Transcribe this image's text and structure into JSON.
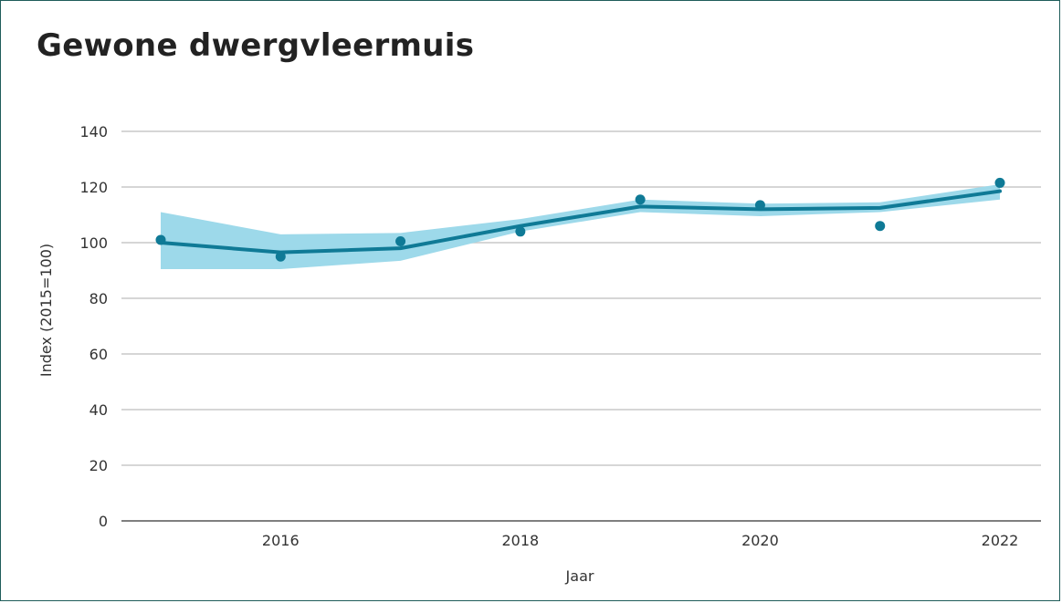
{
  "chart_data": {
    "type": "line",
    "title": "Gewone dwergvleermuis",
    "xlabel": "Jaar",
    "ylabel": "Index (2015=100)",
    "xlim": [
      2015,
      2022
    ],
    "ylim": [
      0,
      140
    ],
    "x_ticks": [
      2016,
      2018,
      2020,
      2022
    ],
    "y_ticks": [
      0,
      20,
      40,
      60,
      80,
      100,
      120,
      140
    ],
    "grid": true,
    "trend": {
      "x": [
        2015,
        2016,
        2017,
        2018,
        2019,
        2020,
        2021,
        2022
      ],
      "values": [
        100,
        96.5,
        98,
        106,
        113,
        112,
        112.5,
        118.5
      ]
    },
    "band": {
      "x": [
        2015,
        2016,
        2017,
        2018,
        2019,
        2020,
        2021,
        2022
      ],
      "lower": [
        90.5,
        90.5,
        93.5,
        104,
        111,
        109.5,
        111,
        115.5
      ],
      "upper": [
        111,
        103,
        103.5,
        108.5,
        115.5,
        114,
        114.5,
        121
      ]
    },
    "points": {
      "x": [
        2015,
        2016,
        2017,
        2018,
        2019,
        2020,
        2021,
        2022
      ],
      "values": [
        101,
        95,
        100.5,
        104,
        115.5,
        113.5,
        106,
        121.5
      ]
    },
    "colors": {
      "line": "#0f7a96",
      "band": "#9dd9ea",
      "points": "#0f7a96",
      "grid": "#c8c8c8"
    }
  }
}
